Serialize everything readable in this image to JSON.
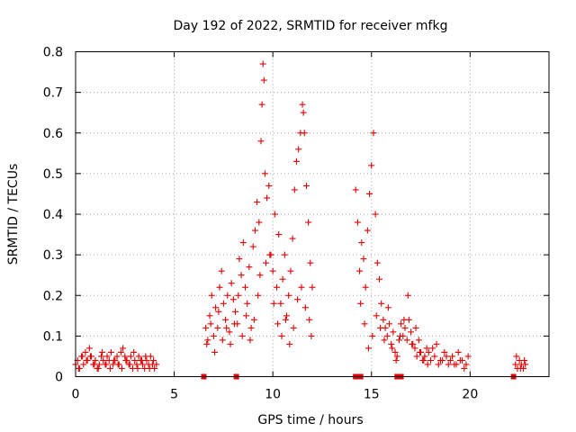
{
  "chart_data": {
    "type": "scatter",
    "title": "Day 192 of 2022, SRMTID for receiver mfkg",
    "xlabel": "GPS time / hours",
    "ylabel": "SRMTID / TECUs",
    "xlim": [
      0,
      24
    ],
    "ylim": [
      0,
      0.8
    ],
    "xticks": [
      "0",
      "5",
      "10",
      "15",
      "20"
    ],
    "xtick_values": [
      0,
      5,
      10,
      15,
      20
    ],
    "yticks": [
      "0",
      "0.1",
      "0.2",
      "0.3",
      "0.4",
      "0.5",
      "0.6",
      "0.7",
      "0.8"
    ],
    "ytick_values": [
      0,
      0.1,
      0.2,
      0.3,
      0.4,
      0.5,
      0.6,
      0.7,
      0.8
    ],
    "grid": true,
    "marker": "+",
    "series_color": "#e00000",
    "series": [
      {
        "name": "SRMTID",
        "x": [
          0.0,
          0.1,
          0.2,
          0.3,
          0.4,
          0.5,
          0.6,
          0.7,
          0.8,
          0.9,
          1.0,
          1.1,
          1.2,
          1.3,
          1.4,
          1.5,
          1.6,
          1.7,
          1.8,
          1.9,
          2.0,
          2.1,
          2.2,
          2.3,
          2.4,
          2.5,
          2.6,
          2.7,
          2.8,
          2.9,
          3.0,
          3.1,
          3.2,
          3.3,
          3.4,
          3.5,
          3.6,
          3.7,
          3.8,
          3.9,
          4.0,
          4.1,
          0.15,
          0.35,
          0.55,
          0.75,
          0.95,
          1.15,
          1.35,
          1.55,
          1.75,
          1.95,
          2.15,
          2.35,
          2.55,
          2.75,
          2.95,
          3.15,
          3.35,
          3.55,
          3.75,
          3.95,
          6.6,
          6.7,
          6.8,
          6.9,
          7.0,
          7.1,
          7.2,
          7.3,
          7.4,
          7.5,
          7.6,
          7.7,
          7.8,
          7.9,
          8.0,
          8.1,
          8.2,
          8.3,
          8.4,
          8.5,
          8.6,
          8.7,
          8.8,
          8.9,
          9.0,
          9.1,
          9.2,
          9.3,
          9.4,
          9.45,
          9.5,
          9.55,
          9.6,
          9.7,
          9.8,
          9.9,
          10.0,
          10.1,
          10.2,
          10.3,
          10.4,
          10.5,
          10.6,
          10.7,
          10.8,
          10.9,
          11.0,
          11.1,
          11.2,
          11.3,
          11.4,
          11.5,
          11.55,
          11.6,
          11.7,
          11.8,
          11.9,
          12.0,
          6.65,
          6.85,
          7.05,
          7.25,
          7.45,
          7.65,
          7.85,
          8.05,
          8.25,
          8.45,
          8.65,
          8.85,
          9.05,
          9.25,
          9.35,
          9.65,
          9.85,
          10.05,
          10.25,
          10.45,
          10.65,
          10.85,
          11.05,
          11.25,
          11.45,
          11.65,
          11.85,
          11.95,
          14.2,
          14.3,
          14.4,
          14.5,
          14.6,
          14.7,
          14.8,
          14.9,
          15.0,
          15.1,
          15.2,
          15.3,
          15.4,
          15.5,
          15.6,
          15.7,
          15.8,
          15.9,
          16.0,
          16.1,
          16.2,
          16.3,
          16.4,
          16.5,
          16.6,
          16.7,
          16.8,
          16.9,
          17.0,
          17.1,
          17.2,
          17.3,
          17.4,
          17.5,
          17.6,
          17.7,
          17.8,
          17.9,
          18.0,
          18.2,
          18.4,
          18.6,
          18.8,
          19.0,
          19.2,
          19.4,
          19.6,
          19.8,
          19.9,
          14.45,
          14.65,
          14.85,
          15.05,
          15.25,
          15.45,
          15.65,
          15.85,
          16.05,
          16.25,
          16.45,
          16.65,
          16.85,
          17.05,
          17.25,
          17.45,
          17.65,
          17.85,
          18.1,
          18.3,
          18.5,
          18.7,
          18.9,
          19.1,
          19.3,
          19.5,
          19.7,
          22.3,
          22.4,
          22.5,
          22.6,
          22.7,
          22.8,
          22.35,
          22.55,
          22.75
        ],
        "y": [
          0.03,
          0.04,
          0.02,
          0.05,
          0.03,
          0.06,
          0.04,
          0.07,
          0.05,
          0.03,
          0.04,
          0.02,
          0.03,
          0.05,
          0.04,
          0.03,
          0.05,
          0.04,
          0.06,
          0.03,
          0.04,
          0.05,
          0.03,
          0.06,
          0.07,
          0.05,
          0.04,
          0.03,
          0.05,
          0.02,
          0.04,
          0.03,
          0.05,
          0.04,
          0.03,
          0.02,
          0.04,
          0.03,
          0.05,
          0.03,
          0.02,
          0.03,
          0.02,
          0.05,
          0.04,
          0.05,
          0.03,
          0.02,
          0.06,
          0.03,
          0.02,
          0.04,
          0.03,
          0.02,
          0.04,
          0.03,
          0.06,
          0.02,
          0.04,
          0.05,
          0.02,
          0.04,
          0.12,
          0.09,
          0.15,
          0.2,
          0.1,
          0.17,
          0.12,
          0.22,
          0.26,
          0.18,
          0.14,
          0.2,
          0.11,
          0.23,
          0.19,
          0.16,
          0.13,
          0.29,
          0.25,
          0.33,
          0.22,
          0.18,
          0.27,
          0.12,
          0.32,
          0.36,
          0.43,
          0.38,
          0.58,
          0.67,
          0.77,
          0.73,
          0.5,
          0.44,
          0.47,
          0.3,
          0.26,
          0.4,
          0.22,
          0.35,
          0.18,
          0.24,
          0.3,
          0.15,
          0.2,
          0.26,
          0.34,
          0.46,
          0.53,
          0.56,
          0.6,
          0.67,
          0.65,
          0.6,
          0.47,
          0.38,
          0.28,
          0.22,
          0.08,
          0.13,
          0.06,
          0.16,
          0.09,
          0.12,
          0.08,
          0.13,
          0.2,
          0.1,
          0.15,
          0.09,
          0.14,
          0.2,
          0.25,
          0.28,
          0.3,
          0.18,
          0.13,
          0.1,
          0.14,
          0.08,
          0.12,
          0.19,
          0.22,
          0.17,
          0.14,
          0.1,
          0.46,
          0.38,
          0.26,
          0.33,
          0.29,
          0.22,
          0.36,
          0.45,
          0.52,
          0.6,
          0.4,
          0.28,
          0.24,
          0.18,
          0.14,
          0.12,
          0.1,
          0.13,
          0.08,
          0.11,
          0.06,
          0.05,
          0.09,
          0.13,
          0.1,
          0.12,
          0.09,
          0.14,
          0.11,
          0.08,
          0.07,
          0.05,
          0.09,
          0.06,
          0.04,
          0.05,
          0.07,
          0.06,
          0.04,
          0.05,
          0.03,
          0.04,
          0.05,
          0.04,
          0.03,
          0.06,
          0.04,
          0.03,
          0.05,
          0.18,
          0.13,
          0.07,
          0.1,
          0.15,
          0.12,
          0.09,
          0.17,
          0.07,
          0.04,
          0.1,
          0.14,
          0.2,
          0.08,
          0.12,
          0.06,
          0.04,
          0.03,
          0.07,
          0.08,
          0.04,
          0.06,
          0.03,
          0.05,
          0.03,
          0.04,
          0.02,
          0.03,
          0.02,
          0.04,
          0.03,
          0.02,
          0.03,
          0.05,
          0.02,
          0.04
        ]
      }
    ],
    "flagged_markers": {
      "name": "data gaps",
      "x": [
        6.5,
        8.15,
        14.2,
        14.45,
        16.3,
        16.5,
        22.2
      ],
      "y": [
        0,
        0,
        0,
        0,
        0,
        0,
        0
      ]
    }
  }
}
